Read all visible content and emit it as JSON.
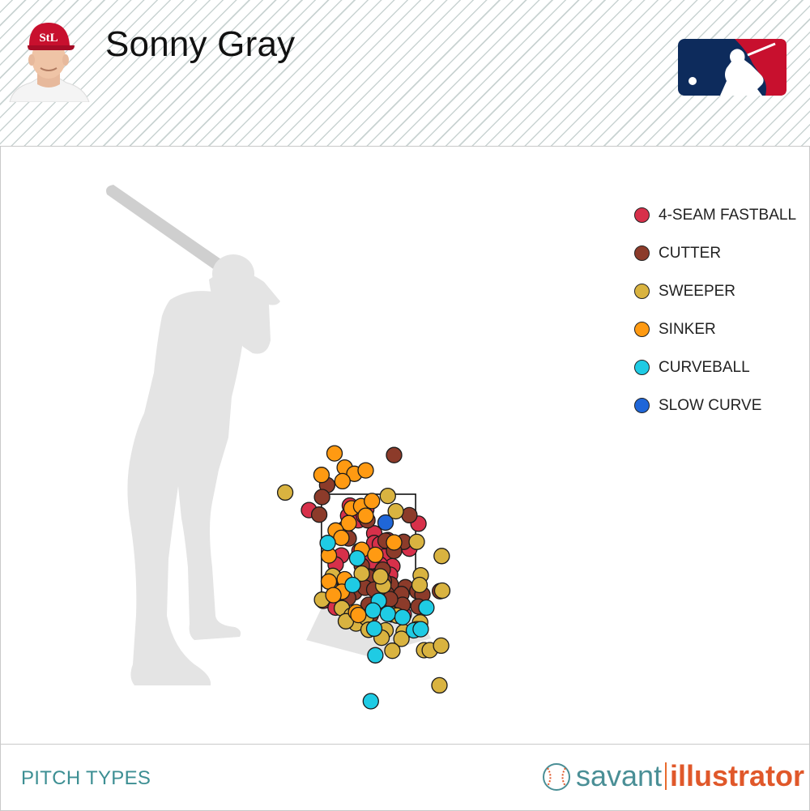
{
  "header": {
    "player_name": "Sonny Gray",
    "headshot": "player-headshot-icon",
    "league_logo": "mlb-logo-icon"
  },
  "footer": {
    "title": "PITCH TYPES",
    "brand_left": "savant",
    "brand_right": "illustrator"
  },
  "chart_data": {
    "type": "scatter",
    "title": "",
    "xlabel": "",
    "ylabel": "",
    "x_units": "plate location, horizontal (ft, catcher view)",
    "y_units": "plate location, height (ft)",
    "xlim": [
      -3.0,
      3.0
    ],
    "ylim": [
      -0.5,
      5.0
    ],
    "strike_zone": {
      "x": [
        -0.83,
        0.83
      ],
      "y": [
        1.5,
        3.5
      ]
    },
    "legend_position": "right",
    "series": [
      {
        "name": "4-SEAM FASTBALL",
        "color": "#d7304a",
        "points": [
          [
            -0.33,
            3.3
          ],
          [
            -0.25,
            3.23
          ],
          [
            -0.04,
            3.23
          ],
          [
            -0.36,
            3.12
          ],
          [
            -0.18,
            3.04
          ],
          [
            -0.08,
            3.12
          ],
          [
            -1.05,
            3.22
          ],
          [
            0.88,
            2.98
          ],
          [
            -0.42,
            2.89
          ],
          [
            0.1,
            2.81
          ],
          [
            0.1,
            2.64
          ],
          [
            0.34,
            2.69
          ],
          [
            0.72,
            2.54
          ],
          [
            -0.48,
            2.42
          ],
          [
            -0.58,
            2.26
          ],
          [
            0.2,
            2.62
          ],
          [
            0.28,
            2.4
          ],
          [
            0.25,
            2.2
          ],
          [
            0.15,
            2.06
          ],
          [
            0.42,
            2.23
          ],
          [
            0.38,
            2.08
          ],
          [
            -0.16,
            2.5
          ],
          [
            0.2,
            2.26
          ],
          [
            0.04,
            2.31
          ],
          [
            0.33,
            1.82
          ],
          [
            -0.8,
            1.62
          ],
          [
            -0.58,
            1.5
          ],
          [
            0.28,
            1.62
          ],
          [
            0.62,
            1.38
          ]
        ]
      },
      {
        "name": "CUTTER",
        "color": "#8c3b2a",
        "points": [
          [
            0.45,
            4.19
          ],
          [
            -0.73,
            3.66
          ],
          [
            -0.02,
            3.04
          ],
          [
            0.72,
            3.13
          ],
          [
            -0.82,
            3.45
          ],
          [
            -0.87,
            3.14
          ],
          [
            -0.35,
            2.72
          ],
          [
            0.3,
            2.68
          ],
          [
            0.62,
            2.66
          ],
          [
            0.45,
            2.5
          ],
          [
            -0.12,
            2.24
          ],
          [
            0.03,
            2.05
          ],
          [
            0.25,
            2.17
          ],
          [
            0.0,
            2.04
          ],
          [
            0.65,
            1.86
          ],
          [
            -0.61,
            2.04
          ],
          [
            -0.45,
            1.81
          ],
          [
            -0.25,
            1.77
          ],
          [
            -0.06,
            1.85
          ],
          [
            0.39,
            1.91
          ],
          [
            0.32,
            1.74
          ],
          [
            0.15,
            1.55
          ],
          [
            0.0,
            1.55
          ],
          [
            0.27,
            1.97
          ],
          [
            0.58,
            1.74
          ],
          [
            0.49,
            1.52
          ],
          [
            -0.36,
            1.67
          ],
          [
            0.86,
            1.79
          ],
          [
            0.95,
            1.73
          ],
          [
            0.6,
            1.55
          ],
          [
            0.2,
            1.7
          ],
          [
            0.1,
            1.82
          ],
          [
            0.88,
            1.52
          ],
          [
            0.38,
            1.65
          ],
          [
            0.04,
            1.37
          ],
          [
            1.26,
            1.79
          ]
        ]
      },
      {
        "name": "SWEEPER",
        "color": "#d9b340",
        "points": [
          [
            -1.47,
            3.53
          ],
          [
            0.34,
            3.47
          ],
          [
            0.48,
            3.2
          ],
          [
            0.85,
            2.66
          ],
          [
            -0.12,
            2.1
          ],
          [
            0.92,
            2.07
          ],
          [
            1.29,
            2.41
          ],
          [
            0.26,
            1.89
          ],
          [
            0.21,
            2.05
          ],
          [
            -0.63,
            2.06
          ],
          [
            0.9,
            1.9
          ],
          [
            1.3,
            1.8
          ],
          [
            -0.47,
            1.49
          ],
          [
            -0.82,
            1.64
          ],
          [
            0.42,
            1.38
          ],
          [
            0.5,
            1.36
          ],
          [
            -0.3,
            1.36
          ],
          [
            -0.22,
            1.22
          ],
          [
            -0.4,
            1.26
          ],
          [
            -0.05,
            1.33
          ],
          [
            0.0,
            1.11
          ],
          [
            0.3,
            1.1
          ],
          [
            0.62,
            1.07
          ],
          [
            0.91,
            1.24
          ],
          [
            0.85,
            1.12
          ],
          [
            0.23,
            0.97
          ],
          [
            0.58,
            0.95
          ],
          [
            0.98,
            0.75
          ],
          [
            1.08,
            0.75
          ],
          [
            1.28,
            0.83
          ],
          [
            0.42,
            0.74
          ],
          [
            1.25,
            0.13
          ]
        ]
      },
      {
        "name": "SINKER",
        "color": "#ff9a12",
        "points": [
          [
            -0.6,
            4.22
          ],
          [
            -0.42,
            3.97
          ],
          [
            -0.25,
            3.86
          ],
          [
            -0.83,
            3.84
          ],
          [
            -0.46,
            3.73
          ],
          [
            -0.05,
            3.92
          ],
          [
            -0.3,
            3.25
          ],
          [
            -0.13,
            3.29
          ],
          [
            -0.05,
            3.12
          ],
          [
            0.06,
            3.38
          ],
          [
            -0.35,
            2.99
          ],
          [
            -0.58,
            2.86
          ],
          [
            -0.48,
            2.73
          ],
          [
            0.45,
            2.65
          ],
          [
            -0.7,
            2.42
          ],
          [
            -0.12,
            2.52
          ],
          [
            0.12,
            2.43
          ],
          [
            -0.42,
            2.0
          ],
          [
            -0.7,
            1.96
          ],
          [
            -0.47,
            1.78
          ],
          [
            -0.62,
            1.72
          ],
          [
            -0.22,
            1.42
          ],
          [
            -0.18,
            1.37
          ]
        ]
      },
      {
        "name": "CURVEBALL",
        "color": "#1fcbe4",
        "points": [
          [
            -0.72,
            2.64
          ],
          [
            -0.2,
            2.37
          ],
          [
            -0.28,
            1.9
          ],
          [
            0.18,
            1.62
          ],
          [
            0.08,
            1.45
          ],
          [
            0.34,
            1.39
          ],
          [
            0.6,
            1.33
          ],
          [
            0.8,
            1.1
          ],
          [
            0.92,
            1.12
          ],
          [
            1.02,
            1.5
          ],
          [
            0.1,
            1.13
          ],
          [
            0.12,
            0.66
          ],
          [
            0.04,
            -0.15
          ]
        ]
      },
      {
        "name": "SLOW CURVE",
        "color": "#1f66d8",
        "points": [
          [
            0.3,
            3.0
          ]
        ]
      }
    ]
  }
}
